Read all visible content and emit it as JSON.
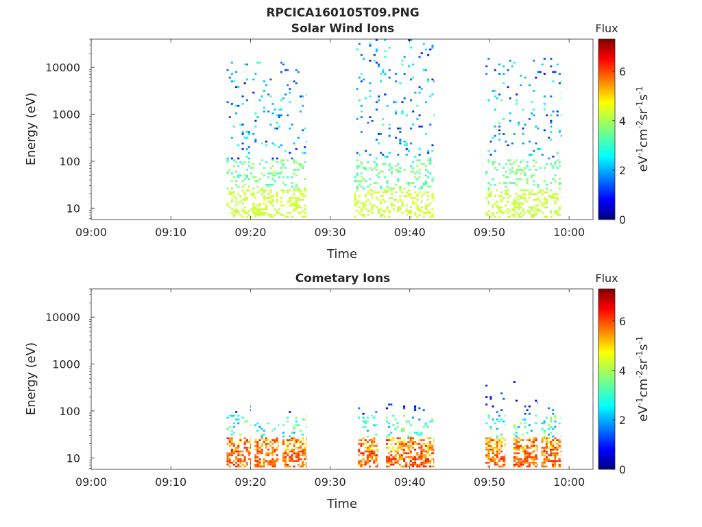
{
  "figure_title": "RPCICA160105T09.PNG",
  "chart_data": [
    {
      "type": "heatmap",
      "title": "Solar Wind Ions",
      "xlabel": "Time",
      "ylabel": "Energy (eV)",
      "x_ticks": [
        "09:00",
        "09:10",
        "09:20",
        "09:30",
        "09:40",
        "09:50",
        "10:00"
      ],
      "x_range_minutes": [
        0,
        63
      ],
      "y_scale": "log",
      "y_ticks": [
        {
          "value": 10,
          "label": "10"
        },
        {
          "value": 100,
          "label": "100"
        },
        {
          "value": 1000,
          "label": "1000"
        },
        {
          "value": 10000,
          "label": "10000"
        }
      ],
      "y_range": [
        5.7,
        40000
      ],
      "colorbar": {
        "label_top": "Flux",
        "label": "eV-1cm-2sr-1s-1",
        "ticks": [
          "0",
          "2",
          "4",
          "6"
        ],
        "range": [
          0,
          7.3
        ],
        "colormap": "jet"
      },
      "clusters": [
        {
          "t_start": 17.0,
          "t_end": 24.0,
          "e_min": 6,
          "e_max": 13000,
          "peak_flux": 4.3
        },
        {
          "t_start": 24.0,
          "t_end": 27.0,
          "e_min": 6,
          "e_max": 15000,
          "peak_flux": 4.3
        },
        {
          "t_start": 33.0,
          "t_end": 43.0,
          "e_min": 6,
          "e_max": 40000,
          "peak_flux": 4.3
        },
        {
          "t_start": 49.5,
          "t_end": 59.0,
          "e_min": 6,
          "e_max": 16000,
          "peak_flux": 4.2
        }
      ]
    },
    {
      "type": "heatmap",
      "title": "Cometary Ions",
      "xlabel": "Time",
      "ylabel": "Energy (eV)",
      "x_ticks": [
        "09:00",
        "09:10",
        "09:20",
        "09:30",
        "09:40",
        "09:50",
        "10:00"
      ],
      "x_range_minutes": [
        0,
        63
      ],
      "y_scale": "log",
      "y_ticks": [
        {
          "value": 10,
          "label": "10"
        },
        {
          "value": 100,
          "label": "100"
        },
        {
          "value": 1000,
          "label": "1000"
        },
        {
          "value": 10000,
          "label": "10000"
        }
      ],
      "y_range": [
        5.7,
        40000
      ],
      "colorbar": {
        "label_top": "Flux",
        "label": "eV-1cm-2sr-1s-1",
        "ticks": [
          "0",
          "2",
          "4",
          "6"
        ],
        "range": [
          0,
          7.3
        ],
        "colormap": "jet"
      },
      "clusters": [
        {
          "t_start": 17.0,
          "t_end": 20.0,
          "e_min": 6,
          "e_max": 130,
          "peak_flux": 6.3
        },
        {
          "t_start": 20.5,
          "t_end": 23.5,
          "e_min": 6,
          "e_max": 60,
          "peak_flux": 6.0
        },
        {
          "t_start": 24.0,
          "t_end": 27.0,
          "e_min": 6,
          "e_max": 130,
          "peak_flux": 6.3
        },
        {
          "t_start": 33.5,
          "t_end": 36.0,
          "e_min": 6,
          "e_max": 120,
          "peak_flux": 6.3
        },
        {
          "t_start": 37.0,
          "t_end": 40.0,
          "e_min": 6,
          "e_max": 140,
          "peak_flux": 6.3
        },
        {
          "t_start": 40.0,
          "t_end": 43.0,
          "e_min": 6,
          "e_max": 130,
          "peak_flux": 6.3
        },
        {
          "t_start": 49.5,
          "t_end": 52.0,
          "e_min": 6,
          "e_max": 400,
          "peak_flux": 6.3
        },
        {
          "t_start": 53.0,
          "t_end": 56.0,
          "e_min": 6,
          "e_max": 500,
          "peak_flux": 6.3
        },
        {
          "t_start": 56.5,
          "t_end": 59.0,
          "e_min": 6,
          "e_max": 130,
          "peak_flux": 6.3
        }
      ]
    }
  ]
}
